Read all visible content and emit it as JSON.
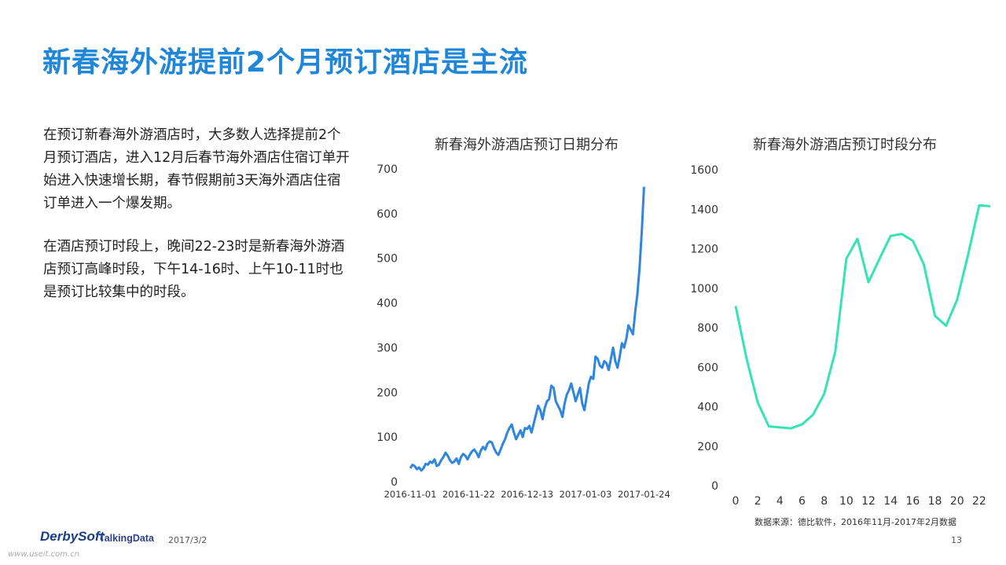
{
  "title": "新春海外游提前2个月预订酒店是主流",
  "description": {
    "p1": "在预订新春海外游酒店时，大多数人选择提前2个月预订酒店，进入12月后春节海外酒店住宿订单开始进入快速增长期，春节假期前3天海外酒店住宿订单进入一个爆发期。",
    "p2": "在酒店预订时段上，晚间22-23时是新春海外游酒店预订高峰时段，下午14-16时、上午10-11时也是预订比较集中的时段。"
  },
  "chart_data": [
    {
      "type": "line",
      "title": "新春海外游酒店预订日期分布",
      "x_start": "2016-11-01",
      "x_end": "2017-01-27",
      "x_tick_labels": [
        "2016-11-01",
        "2016-11-22",
        "2016-12-13",
        "2017-01-03",
        "2017-01-24"
      ],
      "y_tick_labels": [
        "0",
        "100",
        "200",
        "300",
        "400",
        "500",
        "600",
        "700"
      ],
      "ylim": [
        0,
        700
      ],
      "color": "#2e86de",
      "series": [
        {
          "values": [
            30,
            38,
            35,
            28,
            32,
            25,
            30,
            40,
            38,
            45,
            42,
            50,
            35,
            38,
            48,
            55,
            65,
            58,
            48,
            42,
            45,
            52,
            40,
            55,
            62,
            58,
            50,
            60,
            68,
            72,
            65,
            55,
            70,
            78,
            72,
            85,
            90,
            88,
            75,
            65,
            60,
            72,
            85,
            95,
            110,
            120,
            128,
            110,
            95,
            105,
            115,
            100,
            120,
            118,
            125,
            110,
            130,
            150,
            170,
            160,
            140,
            165,
            180,
            185,
            215,
            210,
            180,
            170,
            160,
            145,
            175,
            195,
            205,
            220,
            200,
            180,
            195,
            210,
            175,
            160,
            190,
            220,
            235,
            230,
            280,
            275,
            260,
            255,
            270,
            265,
            250,
            275,
            300,
            270,
            255,
            280,
            310,
            300,
            320,
            350,
            340,
            330,
            380,
            420,
            480,
            560,
            660
          ]
        }
      ]
    },
    {
      "type": "line",
      "title": "新春海外游酒店预订时段分布",
      "x": [
        0,
        1,
        2,
        3,
        4,
        5,
        6,
        7,
        8,
        9,
        10,
        11,
        12,
        13,
        14,
        15,
        16,
        17,
        18,
        19,
        20,
        21,
        22,
        23
      ],
      "x_tick_labels": [
        "0",
        "2",
        "4",
        "6",
        "8",
        "10",
        "12",
        "14",
        "16",
        "18",
        "20",
        "22"
      ],
      "y_tick_labels": [
        "0",
        "200",
        "400",
        "600",
        "800",
        "1000",
        "1200",
        "1400",
        "1600"
      ],
      "ylim": [
        0,
        1600
      ],
      "color": "#36e3b4",
      "series": [
        {
          "values": [
            910,
            640,
            420,
            300,
            295,
            290,
            310,
            360,
            465,
            680,
            1150,
            1250,
            1030,
            1150,
            1265,
            1275,
            1240,
            1120,
            860,
            810,
            940,
            1170,
            1420,
            1415
          ]
        }
      ]
    }
  ],
  "source_note": "数据来源：德比软件，2016年11月-2017年2月数据",
  "footer": {
    "logo1": "DerbySoft",
    "logo2": "TalkingData",
    "date": "2017/3/2",
    "page": "13",
    "watermark": "www.useit.com.cn"
  }
}
